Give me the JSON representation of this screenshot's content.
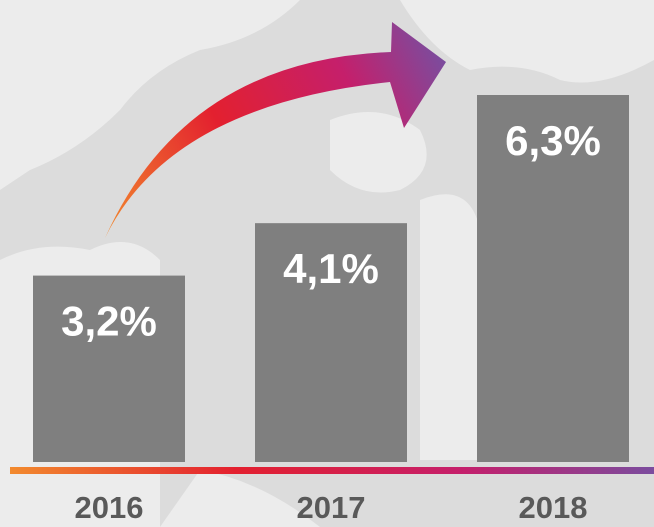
{
  "chart_data": {
    "type": "bar",
    "categories": [
      "2016",
      "2017",
      "2018"
    ],
    "values": [
      3.2,
      4.1,
      6.3
    ],
    "value_labels": [
      "3,2%",
      "4,1%",
      "6,3%"
    ],
    "color": "#7f7f7f"
  }
}
